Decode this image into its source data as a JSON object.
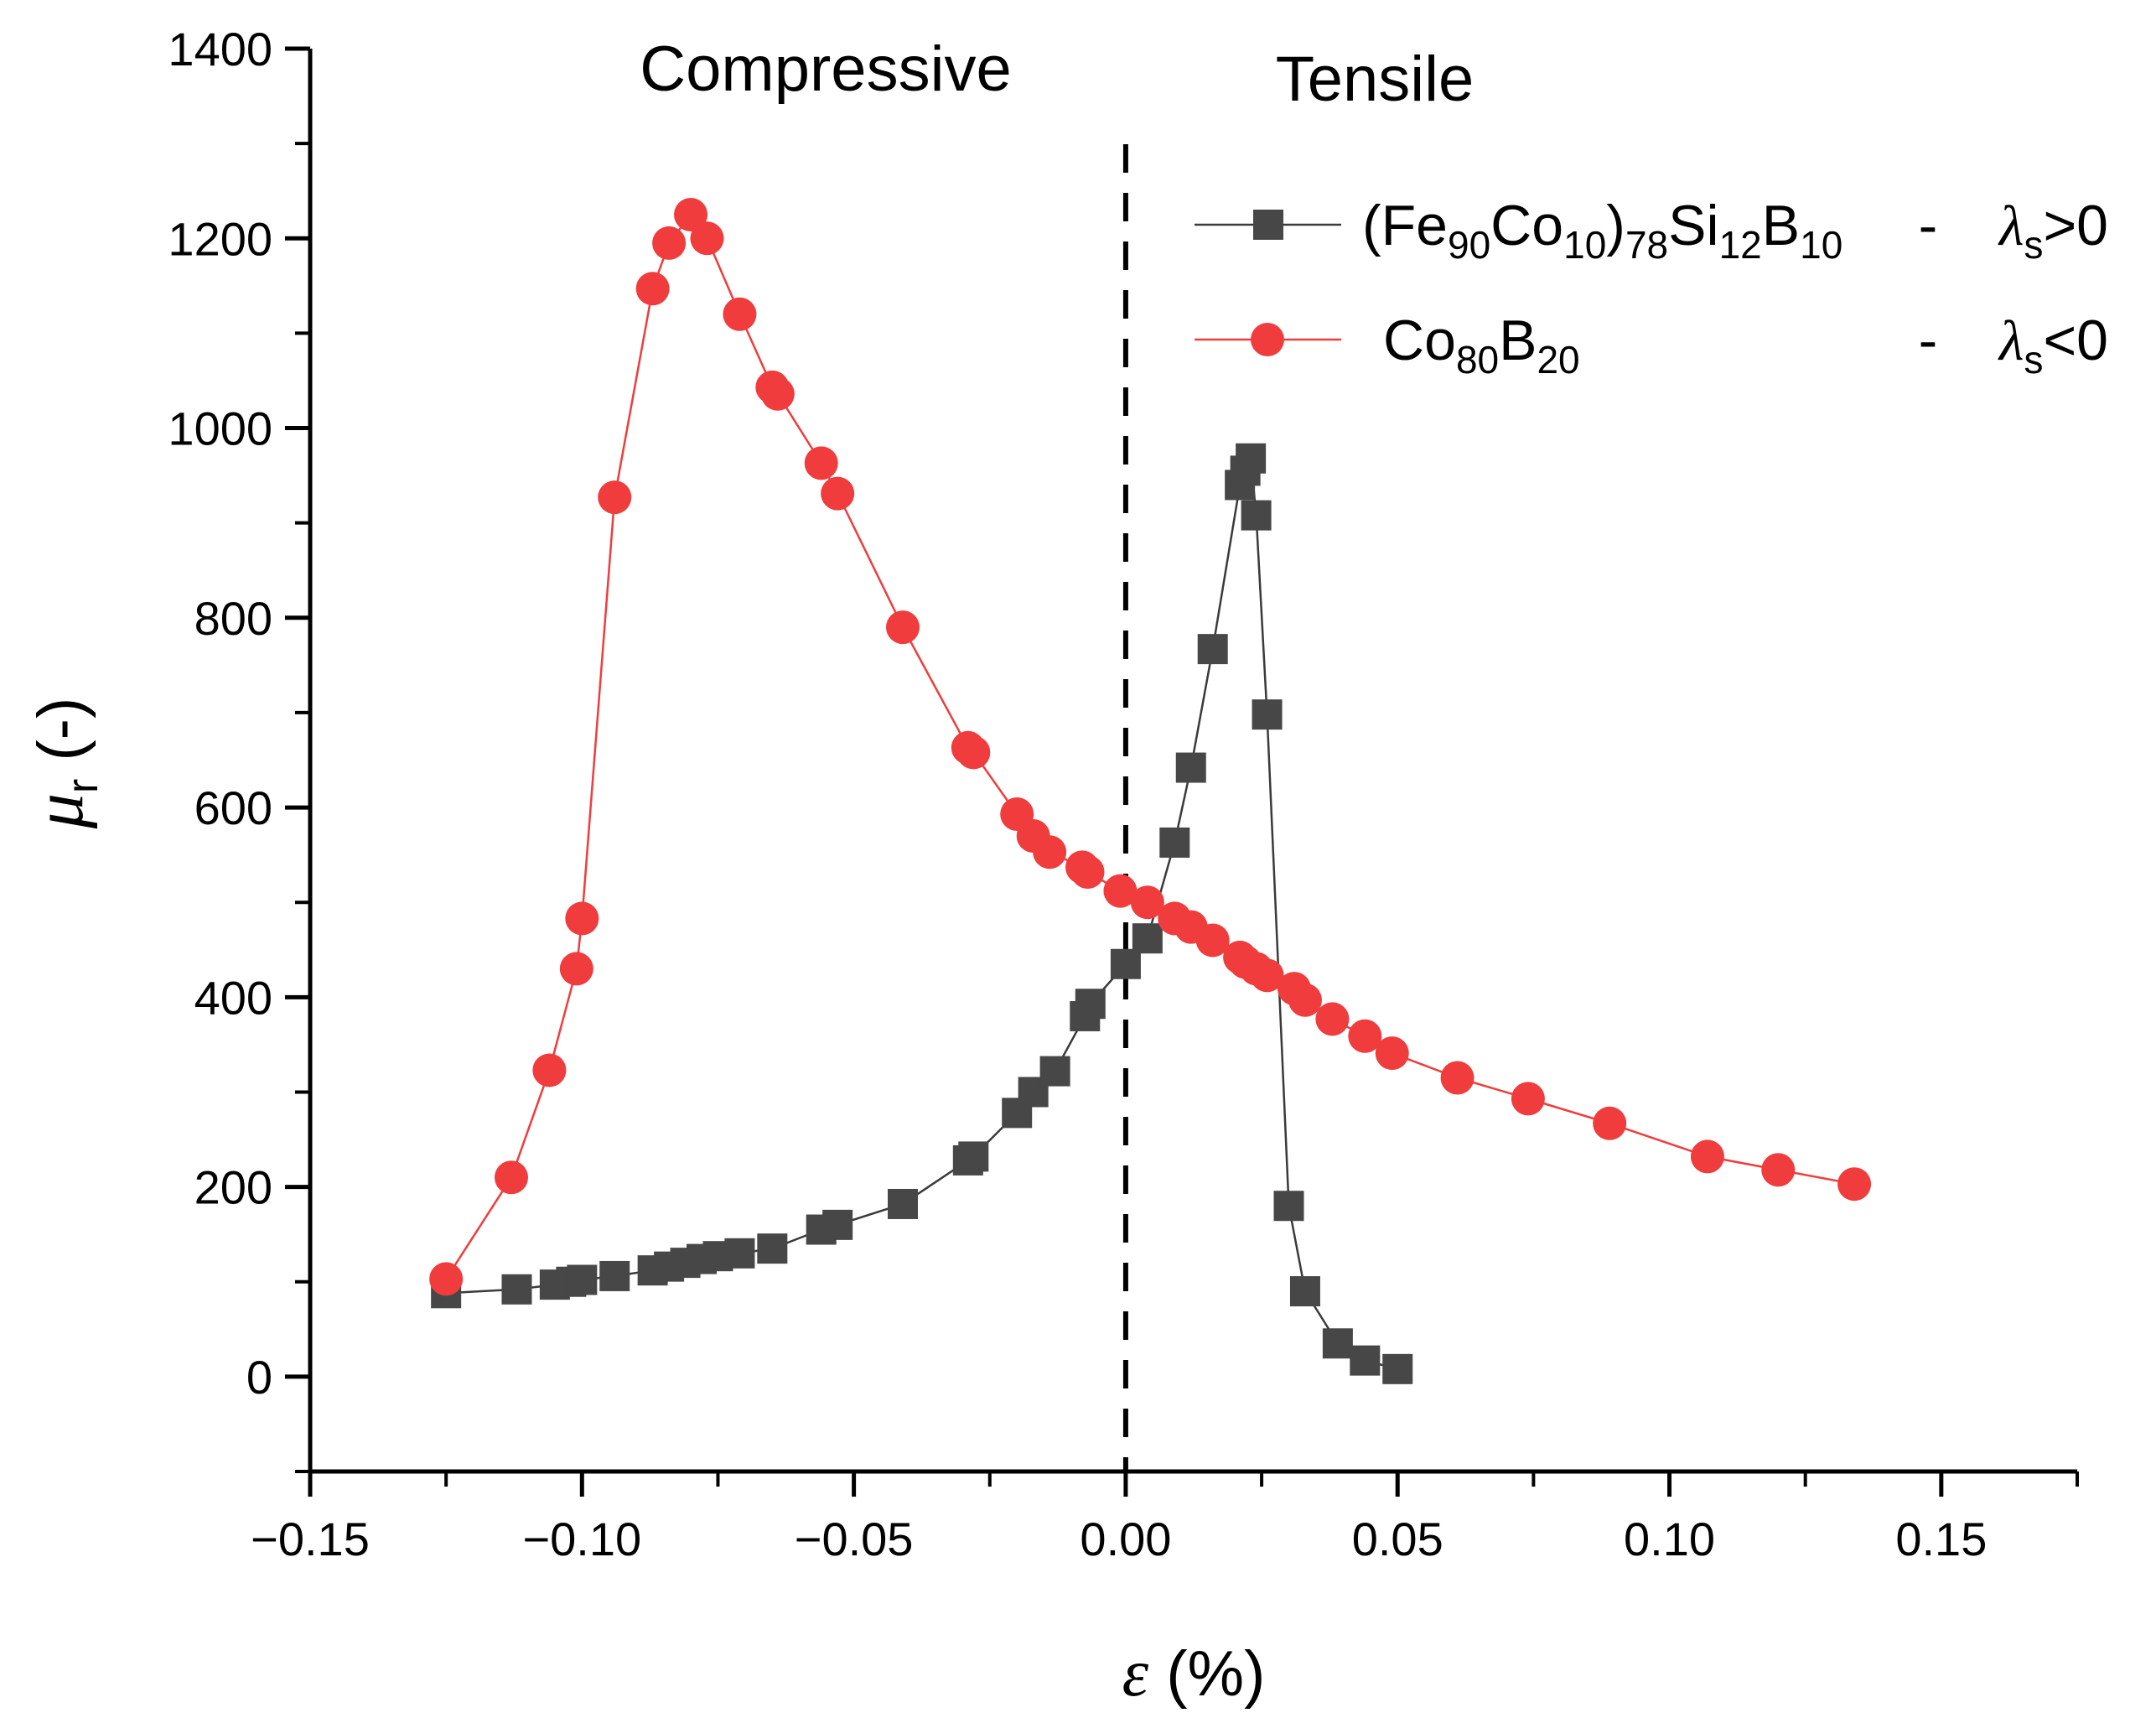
{
  "chart_data": {
    "type": "scatter",
    "xlabel": "ε (%)",
    "ylabel": "μr (-)",
    "xlim": [
      -0.15,
      0.175
    ],
    "ylim": [
      -100,
      1400
    ],
    "xticks": [
      -0.15,
      -0.1,
      -0.05,
      0.0,
      0.05,
      0.1,
      0.15
    ],
    "yticks": [
      0,
      200,
      400,
      600,
      800,
      1000,
      1200,
      1400
    ],
    "x_tick_labels": [
      "−0.15",
      "−0.10",
      "−0.05",
      "0.00",
      "0.05",
      "0.10",
      "0.15"
    ],
    "y_tick_labels": [
      "0",
      "200",
      "400",
      "600",
      "800",
      "1000",
      "1200",
      "1400"
    ],
    "annotations": {
      "compressive": "Compressive",
      "tensile": "Tensile"
    },
    "vline_x": 0.0,
    "legend_position": "top-right",
    "series": [
      {
        "name": "(Fe90Co10)78Si12B10 - λs>0",
        "legend_label": "(Fe90Co10)78Si12B10",
        "legend_condition": "λs>0",
        "marker": "square",
        "color": "#474747",
        "x": [
          -0.125,
          -0.112,
          -0.105,
          -0.102,
          -0.1,
          -0.094,
          -0.087,
          -0.084,
          -0.081,
          -0.078,
          -0.075,
          -0.071,
          -0.065,
          -0.056,
          -0.053,
          -0.041,
          -0.029,
          -0.028,
          -0.02,
          -0.017,
          -0.013,
          -0.0075,
          -0.0065,
          0.0,
          0.004,
          0.009,
          0.012,
          0.016,
          0.021,
          0.022,
          0.023,
          0.024,
          0.026,
          0.03,
          0.033,
          0.039,
          0.044,
          0.05
        ],
        "y": [
          88,
          92,
          97,
          100,
          102,
          106,
          112,
          116,
          120,
          124,
          127,
          130,
          135,
          155,
          160,
          182,
          228,
          232,
          278,
          300,
          322,
          380,
          393,
          435,
          462,
          563,
          642,
          767,
          940,
          955,
          968,
          908,
          698,
          180,
          90,
          35,
          17,
          8
        ]
      },
      {
        "name": "Co80B20 - λs<0",
        "legend_label": "Co80B20",
        "legend_condition": "λs<0",
        "marker": "circle",
        "color": "#f03c3c",
        "x": [
          -0.125,
          -0.113,
          -0.106,
          -0.101,
          -0.1,
          -0.094,
          -0.087,
          -0.084,
          -0.08,
          -0.077,
          -0.071,
          -0.065,
          -0.064,
          -0.056,
          -0.053,
          -0.041,
          -0.029,
          -0.028,
          -0.02,
          -0.017,
          -0.014,
          -0.008,
          -0.007,
          -0.001,
          0.004,
          0.009,
          0.012,
          0.016,
          0.021,
          0.022,
          0.024,
          0.026,
          0.031,
          0.033,
          0.038,
          0.044,
          0.049,
          0.061,
          0.074,
          0.089,
          0.107,
          0.12,
          0.134
        ],
        "y": [
          103,
          210,
          323,
          430,
          483,
          927,
          1147,
          1195,
          1225,
          1200,
          1120,
          1043,
          1036,
          963,
          931,
          790,
          663,
          658,
          593,
          570,
          553,
          537,
          532,
          512,
          500,
          483,
          474,
          460,
          442,
          437,
          430,
          423,
          409,
          397,
          377,
          359,
          341,
          315,
          293,
          267,
          232,
          218,
          203
        ]
      }
    ]
  }
}
